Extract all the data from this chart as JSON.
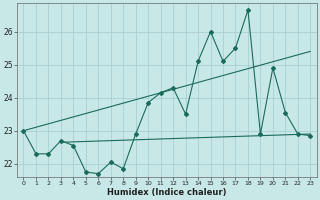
{
  "xlabel": "Humidex (Indice chaleur)",
  "bg_color": "#c8e8e8",
  "grid_color": "#a8d0d0",
  "line_color": "#1a6b5a",
  "xlim": [
    -0.5,
    23.5
  ],
  "ylim": [
    21.6,
    26.85
  ],
  "yticks": [
    22,
    23,
    24,
    25,
    26
  ],
  "xticks": [
    0,
    1,
    2,
    3,
    4,
    5,
    6,
    7,
    8,
    9,
    10,
    11,
    12,
    13,
    14,
    15,
    16,
    17,
    18,
    19,
    20,
    21,
    22,
    23
  ],
  "series1_y": [
    23.0,
    22.3,
    22.3,
    22.7,
    22.55,
    21.75,
    21.7,
    22.05,
    21.85,
    22.9,
    23.85,
    24.15,
    24.3,
    23.5,
    25.1,
    26.0,
    25.1,
    25.5,
    26.65,
    22.9,
    24.9,
    23.55,
    22.9,
    22.85
  ],
  "trend1_x": [
    0,
    23
  ],
  "trend1_y": [
    23.0,
    25.4
  ],
  "trend2_x": [
    3,
    23
  ],
  "trend2_y": [
    22.65,
    22.9
  ]
}
